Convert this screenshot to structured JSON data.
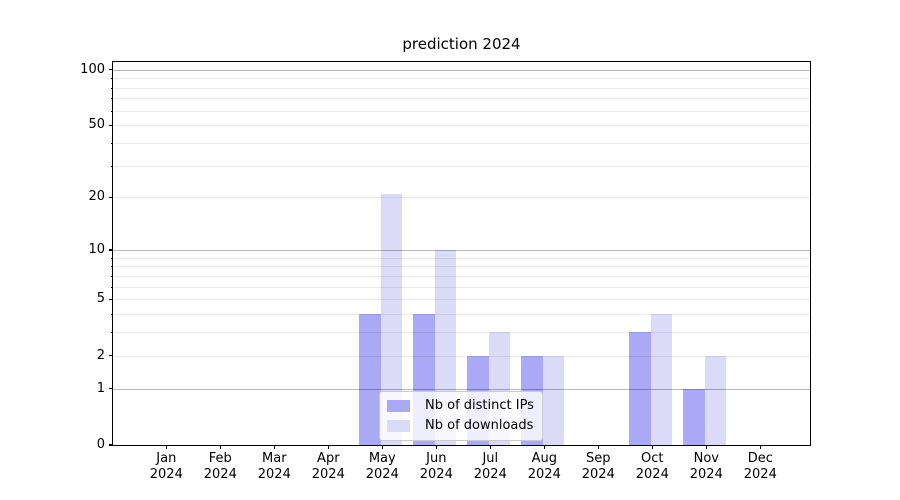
{
  "chart_data": {
    "type": "bar",
    "title": "prediction 2024",
    "categories": [
      "Jan",
      "Feb",
      "Mar",
      "Apr",
      "May",
      "Jun",
      "Jul",
      "Aug",
      "Sep",
      "Oct",
      "Nov",
      "Dec"
    ],
    "year": "2024",
    "series": [
      {
        "name": "Nb of distinct IPs",
        "color": "#a9a9f6",
        "values": [
          0,
          0,
          0,
          0,
          4,
          4,
          2,
          2,
          0,
          3,
          1,
          0
        ]
      },
      {
        "name": "Nb of downloads",
        "color": "#dbdbf8",
        "values": [
          0,
          0,
          0,
          0,
          21,
          10,
          3,
          2,
          0,
          4,
          2,
          0
        ]
      }
    ],
    "y_axis": {
      "scale": "log1p",
      "tick_values": [
        0,
        1,
        2,
        5,
        10,
        20,
        50,
        100
      ],
      "major_gridlines": [
        1,
        10,
        100
      ],
      "minor_gridlines": [
        2,
        3,
        4,
        5,
        6,
        7,
        8,
        9,
        20,
        30,
        40,
        50,
        60,
        70,
        80,
        90
      ],
      "ylim": [
        0,
        110
      ]
    },
    "grid": true,
    "legend_position": "lower center",
    "colors": {
      "major_grid": "rgba(0,0,0,0.28)",
      "minor_grid": "rgba(0,0,0,0.085)",
      "axis": "#000000",
      "legend_border": "#cbcbcb",
      "legend_bg": "rgba(255,255,255,0.8)"
    }
  }
}
